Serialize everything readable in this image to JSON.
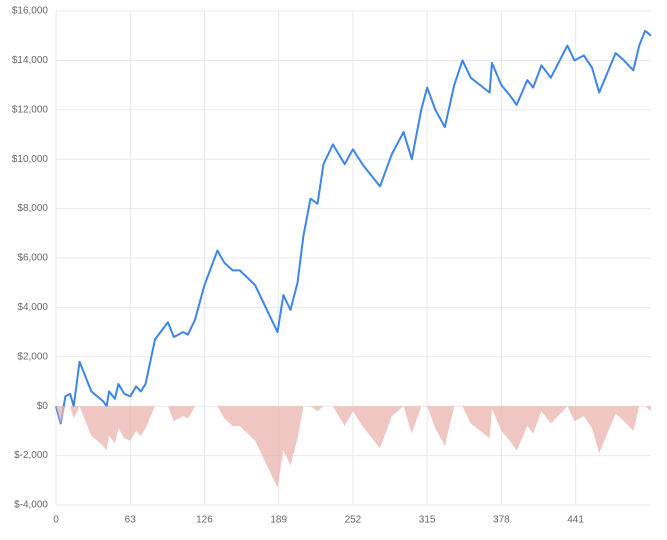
{
  "chart_data": {
    "type": "line",
    "x": [
      0,
      4,
      8,
      12,
      15,
      20,
      25,
      30,
      35,
      40,
      43,
      45,
      50,
      53,
      58,
      63,
      68,
      72,
      76,
      84,
      95,
      100,
      108,
      112,
      118,
      126,
      137,
      143,
      150,
      156,
      169,
      181,
      188,
      193,
      199,
      205,
      210,
      216,
      222,
      227,
      235,
      245,
      252,
      260,
      275,
      285,
      295,
      302,
      310,
      315,
      322,
      330,
      338,
      345,
      352,
      360,
      368,
      370,
      378,
      385,
      391,
      400,
      405,
      412,
      420,
      434,
      440,
      448,
      455,
      461,
      468,
      475,
      482,
      490,
      495,
      500,
      505
    ],
    "series": [
      {
        "type": "line",
        "color": "#3d86e8",
        "values": [
          0,
          -700,
          400,
          500,
          0,
          1800,
          1200,
          600,
          400,
          200,
          0,
          600,
          300,
          900,
          500,
          400,
          800,
          600,
          900,
          2700,
          3400,
          2800,
          3000,
          2900,
          3500,
          4900,
          6300,
          5800,
          5500,
          5500,
          4900,
          3700,
          3000,
          4500,
          3900,
          5000,
          6900,
          8400,
          8200,
          9800,
          10600,
          9800,
          10400,
          9800,
          8900,
          10200,
          11100,
          10000,
          12000,
          12900,
          12000,
          11300,
          13000,
          14000,
          13300,
          13000,
          12700,
          13900,
          13000,
          12600,
          12200,
          13200,
          12900,
          13800,
          13300,
          14600,
          14000,
          14200,
          13700,
          12700,
          13500,
          14300,
          14000,
          13600,
          14600,
          15200,
          15000
        ]
      },
      {
        "type": "area",
        "color": "#eab3ad",
        "values": [
          0,
          -700,
          0,
          0,
          -500,
          0,
          -600,
          -1200,
          -1400,
          -1600,
          -1800,
          -1200,
          -1500,
          -900,
          -1300,
          -1400,
          -1000,
          -1200,
          -900,
          0,
          0,
          -600,
          -400,
          -500,
          0,
          0,
          0,
          -500,
          -800,
          -800,
          -1400,
          -2600,
          -3300,
          -1800,
          -2400,
          -1300,
          0,
          0,
          -200,
          0,
          0,
          -800,
          -200,
          -800,
          -1700,
          -400,
          0,
          -1100,
          0,
          0,
          -900,
          -1600,
          0,
          0,
          -700,
          -1000,
          -1300,
          -100,
          -1000,
          -1400,
          -1800,
          -800,
          -1100,
          -200,
          -700,
          0,
          -600,
          -400,
          -900,
          -1900,
          -1100,
          -300,
          -600,
          -1000,
          0,
          0,
          -200
        ]
      }
    ],
    "xlim": [
      0,
      505
    ],
    "ylim": [
      -4000,
      16000
    ],
    "xticks": [
      0,
      63,
      126,
      189,
      252,
      315,
      378,
      441
    ],
    "yticks": [
      {
        "value": -4000,
        "label": "$-4,000"
      },
      {
        "value": -2000,
        "label": "$-2,000"
      },
      {
        "value": 0,
        "label": "$0"
      },
      {
        "value": 2000,
        "label": "$2,000"
      },
      {
        "value": 4000,
        "label": "$4,000"
      },
      {
        "value": 6000,
        "label": "$6,000"
      },
      {
        "value": 8000,
        "label": "$8,000"
      },
      {
        "value": 10000,
        "label": "$10,000"
      },
      {
        "value": 12000,
        "label": "$12,000"
      },
      {
        "value": 14000,
        "label": "$14,000"
      },
      {
        "value": 16000,
        "label": "$16,000"
      }
    ],
    "grid": true
  }
}
